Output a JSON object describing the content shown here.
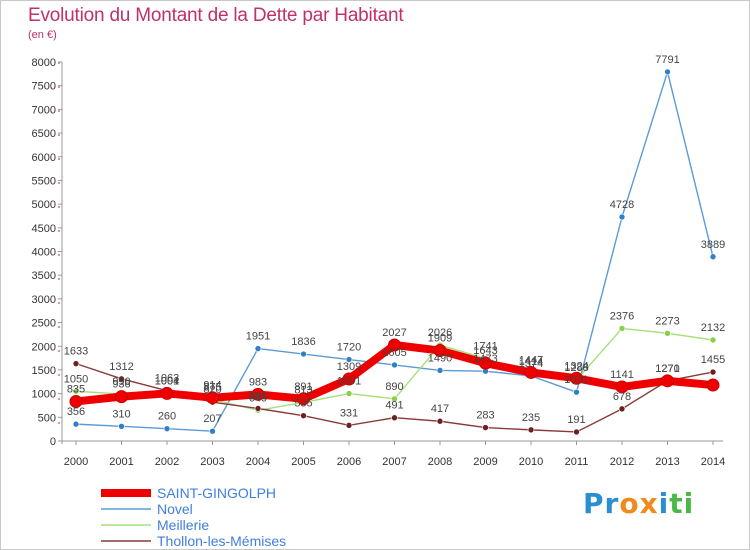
{
  "title": "Evolution du Montant de la Dette par Habitant",
  "unit": "(en €)",
  "logo_text": "Proxiti",
  "logo_letters": [
    "P",
    "r",
    "o",
    "x",
    "i",
    "t",
    "i"
  ],
  "logo_colors": [
    "#2a8fd0",
    "#2a8fd0",
    "#f08a1c",
    "#f08a1c",
    "#2a8fd0",
    "#4cb848",
    "#4cb848"
  ],
  "chart_data": {
    "type": "line",
    "title": "Evolution du Montant de la Dette par Habitant",
    "ylabel": "(en €)",
    "xlabel": "",
    "ylim": [
      0,
      8000
    ],
    "yticks": [
      0,
      500,
      1000,
      1500,
      2000,
      2500,
      3000,
      3500,
      4000,
      4500,
      5000,
      5500,
      6000,
      6500,
      7000,
      7500,
      8000
    ],
    "categories": [
      "2000",
      "2001",
      "2002",
      "2003",
      "2004",
      "2005",
      "2006",
      "2007",
      "2008",
      "2009",
      "2010",
      "2011",
      "2012",
      "2013",
      "2014"
    ],
    "grid": false,
    "legend_position": "bottom-left",
    "series": [
      {
        "name": "SAINT-GINGOLPH",
        "color": "#ee0000",
        "marker": "#ee0000",
        "emphasis": true,
        "values": [
          835,
          936,
          1004,
          914,
          983,
          891,
          1309,
          2027,
          1909,
          1643,
          1447,
          1324,
          1141,
          1270,
          1181
        ],
        "labels": [
          "835",
          "936",
          "1004",
          "914",
          "983",
          "891",
          "1309",
          "2027",
          "1909",
          "1643",
          "1447",
          "1324",
          "1141",
          "1270",
          ""
        ]
      },
      {
        "name": "Novel",
        "color": "#5b9bd5",
        "marker": "#2f80c8",
        "emphasis": false,
        "values": [
          356,
          310,
          260,
          207,
          1951,
          1836,
          1720,
          1605,
          1490,
          1473,
          1374,
          1031,
          4728,
          7791,
          3889
        ],
        "labels": [
          "356",
          "310",
          "260",
          "207",
          "1951",
          "1836",
          "1720",
          "1605",
          "1490",
          "1473",
          "1374",
          "1031",
          "4728",
          "7791",
          "3889"
        ]
      },
      {
        "name": "Meillerie",
        "color": "#a6e07a",
        "marker": "#86d04a",
        "emphasis": false,
        "values": [
          1050,
          990,
          1001,
          875,
          649,
          813,
          1001,
          890,
          2026,
          1741,
          1414,
          1288,
          2376,
          2273,
          2132
        ],
        "labels": [
          "1050",
          "990",
          "1001",
          "875",
          "649",
          "813",
          "1001",
          "890",
          "2026",
          "1741",
          "1414",
          "1288",
          "2376",
          "2273",
          "2132"
        ]
      },
      {
        "name": "Thollon-les-Mémises",
        "color": "#8b3a3a",
        "marker": "#6e1f1f",
        "emphasis": false,
        "values": [
          1633,
          1312,
          1063,
          820,
          686,
          535,
          331,
          491,
          417,
          283,
          235,
          191,
          678,
          1271,
          1455
        ],
        "labels": [
          "1633",
          "1312",
          "1063",
          "820",
          "686",
          "535",
          "331",
          "491",
          "417",
          "283",
          "235",
          "191",
          "678",
          "1271",
          "1455"
        ]
      }
    ]
  }
}
